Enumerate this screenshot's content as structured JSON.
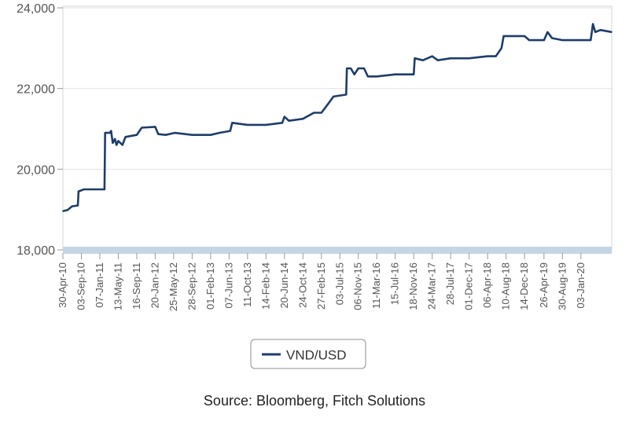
{
  "chart_data": {
    "type": "line",
    "title": "",
    "xlabel": "",
    "ylabel": "",
    "ylim": [
      18000,
      24000
    ],
    "y_ticks": [
      18000,
      20000,
      22000,
      24000
    ],
    "y_tick_labels": [
      "18,000",
      "20,000",
      "22,000",
      "24,000"
    ],
    "x_range": [
      "2010-04-30",
      "2020-07-31"
    ],
    "x_ticks": [
      "2010-04-30",
      "2010-09-03",
      "2011-01-07",
      "2011-05-13",
      "2011-09-16",
      "2012-01-20",
      "2012-05-25",
      "2012-09-28",
      "2013-02-01",
      "2013-06-07",
      "2013-10-11",
      "2014-02-14",
      "2014-06-20",
      "2014-10-24",
      "2015-02-27",
      "2015-07-03",
      "2015-11-06",
      "2016-03-11",
      "2016-07-15",
      "2016-11-18",
      "2017-03-24",
      "2017-07-28",
      "2017-12-01",
      "2018-04-06",
      "2018-08-10",
      "2018-12-14",
      "2019-04-26",
      "2019-08-30",
      "2020-01-03"
    ],
    "x_tick_labels": [
      "30-Apr-10",
      "03-Sep-10",
      "07-Jan-11",
      "13-May-11",
      "16-Sep-11",
      "20-Jan-12",
      "25-May-12",
      "28-Sep-12",
      "01-Feb-13",
      "07-Jun-13",
      "11-Oct-13",
      "14-Feb-14",
      "20-Jun-14",
      "24-Oct-14",
      "27-Feb-15",
      "03-Jul-15",
      "06-Nov-15",
      "11-Mar-16",
      "15-Jul-16",
      "18-Nov-16",
      "24-Mar-17",
      "28-Jul-17",
      "01-Dec-17",
      "06-Apr-18",
      "10-Aug-18",
      "14-Dec-18",
      "26-Apr-19",
      "30-Aug-19",
      "03-Jan-20"
    ],
    "grid": "horizontal",
    "legend_placement": "bottom-center",
    "series": [
      {
        "name": "VND/USD",
        "color": "#1f3d6b",
        "points": [
          [
            "2010-04-30",
            18960
          ],
          [
            "2010-06-01",
            18990
          ],
          [
            "2010-07-01",
            19080
          ],
          [
            "2010-08-10",
            19100
          ],
          [
            "2010-08-15",
            19450
          ],
          [
            "2010-09-20",
            19500
          ],
          [
            "2010-12-01",
            19500
          ],
          [
            "2011-02-08",
            19500
          ],
          [
            "2011-02-12",
            20900
          ],
          [
            "2011-03-15",
            20900
          ],
          [
            "2011-03-25",
            20950
          ],
          [
            "2011-04-05",
            20650
          ],
          [
            "2011-04-20",
            20750
          ],
          [
            "2011-05-01",
            20600
          ],
          [
            "2011-05-13",
            20700
          ],
          [
            "2011-06-10",
            20600
          ],
          [
            "2011-07-01",
            20800
          ],
          [
            "2011-09-16",
            20850
          ],
          [
            "2011-10-20",
            21030
          ],
          [
            "2012-01-20",
            21050
          ],
          [
            "2012-02-10",
            20870
          ],
          [
            "2012-04-01",
            20850
          ],
          [
            "2012-06-01",
            20900
          ],
          [
            "2012-09-28",
            20850
          ],
          [
            "2013-02-01",
            20850
          ],
          [
            "2013-04-01",
            20900
          ],
          [
            "2013-06-15",
            20950
          ],
          [
            "2013-06-28",
            21150
          ],
          [
            "2013-10-11",
            21100
          ],
          [
            "2014-02-14",
            21100
          ],
          [
            "2014-06-05",
            21150
          ],
          [
            "2014-06-20",
            21300
          ],
          [
            "2014-07-20",
            21200
          ],
          [
            "2014-10-24",
            21250
          ],
          [
            "2015-01-07",
            21400
          ],
          [
            "2015-02-27",
            21400
          ],
          [
            "2015-04-10",
            21600
          ],
          [
            "2015-05-20",
            21800
          ],
          [
            "2015-08-15",
            21850
          ],
          [
            "2015-08-20",
            22500
          ],
          [
            "2015-09-15",
            22500
          ],
          [
            "2015-10-10",
            22350
          ],
          [
            "2015-11-06",
            22500
          ],
          [
            "2015-12-15",
            22500
          ],
          [
            "2016-01-10",
            22300
          ],
          [
            "2016-03-11",
            22300
          ],
          [
            "2016-07-15",
            22350
          ],
          [
            "2016-11-18",
            22350
          ],
          [
            "2016-11-25",
            22750
          ],
          [
            "2017-01-20",
            22700
          ],
          [
            "2017-03-24",
            22800
          ],
          [
            "2017-05-01",
            22700
          ],
          [
            "2017-07-28",
            22750
          ],
          [
            "2017-12-01",
            22750
          ],
          [
            "2018-04-06",
            22800
          ],
          [
            "2018-06-01",
            22800
          ],
          [
            "2018-07-10",
            23000
          ],
          [
            "2018-07-25",
            23300
          ],
          [
            "2018-08-10",
            23300
          ],
          [
            "2018-12-14",
            23300
          ],
          [
            "2019-01-15",
            23200
          ],
          [
            "2019-04-26",
            23200
          ],
          [
            "2019-05-20",
            23400
          ],
          [
            "2019-06-20",
            23250
          ],
          [
            "2019-08-30",
            23200
          ],
          [
            "2020-01-03",
            23200
          ],
          [
            "2020-03-10",
            23200
          ],
          [
            "2020-03-25",
            23600
          ],
          [
            "2020-04-10",
            23400
          ],
          [
            "2020-05-15",
            23450
          ],
          [
            "2020-07-31",
            23400
          ]
        ]
      }
    ]
  },
  "source_text": "Source: Bloomberg, Fitch Solutions"
}
